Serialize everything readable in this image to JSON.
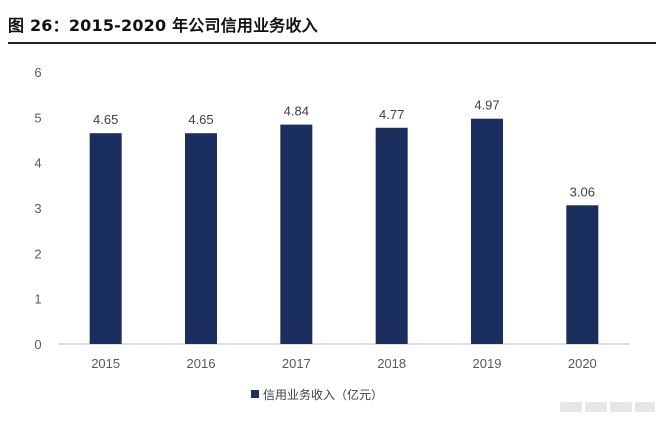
{
  "title": "图 26：2015-2020 年公司信用业务收入",
  "colors": {
    "bar": "#1b2f5e",
    "axis": "#bfbfbf",
    "title_rule": "#222222"
  },
  "chart_data": {
    "type": "bar",
    "categories": [
      "2015",
      "2016",
      "2017",
      "2018",
      "2019",
      "2020"
    ],
    "series": [
      {
        "name": "信用业务收入（亿元）",
        "values": [
          4.65,
          4.65,
          4.84,
          4.77,
          4.97,
          3.06
        ]
      }
    ],
    "value_labels": [
      "4.65",
      "4.65",
      "4.84",
      "4.77",
      "4.97",
      "3.06"
    ],
    "y_ticks": [
      "0",
      "1",
      "2",
      "3",
      "4",
      "5",
      "6"
    ],
    "ylim": [
      0,
      6
    ],
    "grid": false,
    "legend_position": "bottom-left"
  }
}
